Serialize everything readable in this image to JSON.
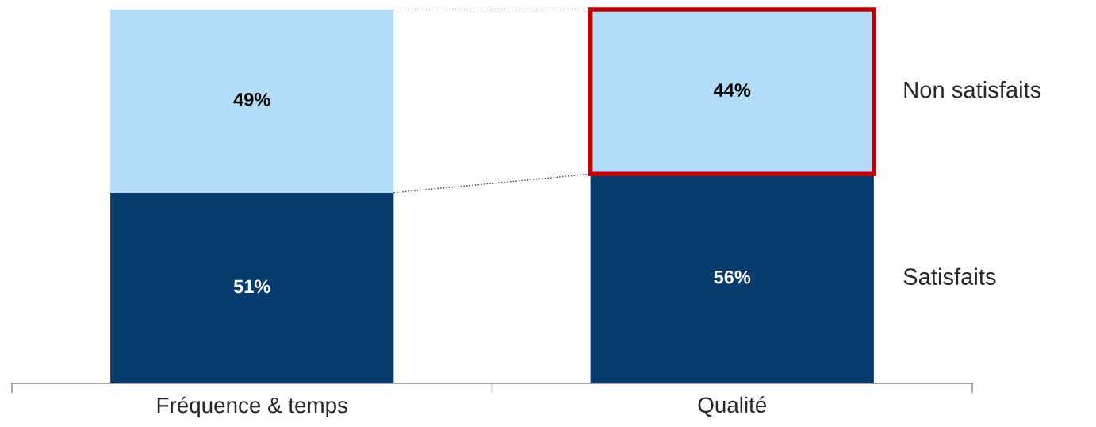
{
  "chart_data": {
    "type": "bar",
    "stacked": true,
    "tick_labels": "x",
    "grid": false,
    "legend": false,
    "categories": [
      "Fréquence & temps",
      "Qualité"
    ],
    "series": [
      {
        "name": "Satisfaits",
        "color": "#063d6e",
        "values": [
          51,
          56
        ],
        "value_labels": [
          "51%",
          "56%"
        ]
      },
      {
        "name": "Non satisfaits",
        "color": "#b3dcf9",
        "values": [
          49,
          44
        ],
        "value_labels": [
          "49%",
          "44%"
        ]
      }
    ]
  }
}
